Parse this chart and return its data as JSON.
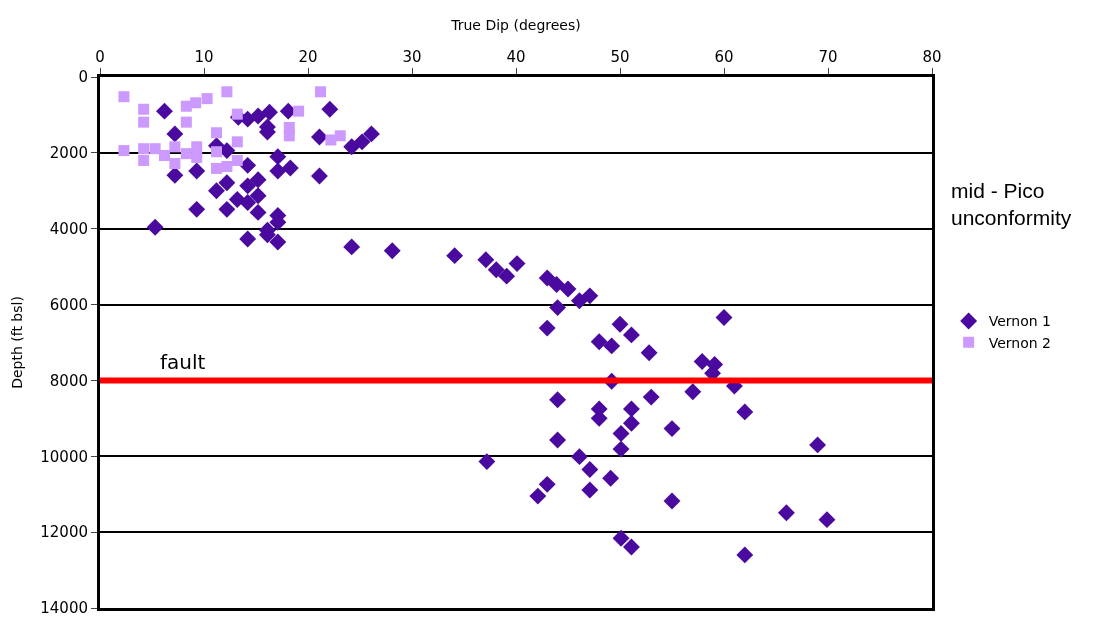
{
  "chart_data": {
    "type": "scatter",
    "xlabel": "True Dip (degrees)",
    "ylabel": "Depth (ft bsl)",
    "xlim": [
      0,
      80
    ],
    "xticks": [
      0,
      10,
      20,
      30,
      40,
      50,
      60,
      70,
      80
    ],
    "ylim": [
      14000,
      0
    ],
    "yticks": [
      0,
      2000,
      4000,
      6000,
      8000,
      10000,
      12000,
      14000
    ],
    "grid": "y",
    "legend": "right",
    "ref_lines": [
      {
        "axis": "y",
        "value": 8000,
        "label": "fault",
        "color": "#ff0000"
      }
    ],
    "annotations": [
      "mid - Pico\nunconformity"
    ],
    "series": [
      {
        "name": "Vernon 1",
        "color": "#4b0a9f",
        "marker": "diamond",
        "x": [
          6.2,
          7.2,
          7.2,
          9.3,
          5.3,
          9.3,
          13.3,
          14.2,
          15.2,
          16.3,
          16.1,
          16.1,
          18.1,
          22.1,
          21.1,
          24.2,
          25.2,
          26.1,
          12.2,
          11.2,
          14.2,
          17.1,
          17.1,
          18.3,
          21.1,
          12.2,
          14.2,
          15.2,
          11.2,
          13.2,
          14.2,
          15.2,
          12.2,
          15.2,
          17.1,
          17.1,
          16.1,
          16.1,
          14.2,
          17.1,
          24.2,
          28.1,
          34.1,
          37.1,
          38.1,
          39.1,
          40.1,
          43.0,
          43.9,
          45.0,
          46.1,
          47.1,
          44.0,
          43.0,
          50.0,
          51.1,
          48.0,
          49.2,
          52.8,
          49.2,
          44.0,
          60.0,
          57.9,
          59.1,
          58.9,
          61.0,
          57.0,
          53.0,
          62.0,
          48.0,
          51.1,
          48.0,
          51.1,
          55.0,
          50.1,
          44.0,
          50.1,
          69.0,
          37.2,
          46.1,
          47.1,
          49.1,
          43.0,
          42.1,
          47.1,
          55.0,
          66.0,
          69.9,
          50.1,
          51.1,
          62.0
        ],
        "values": [
          900,
          1500,
          2590,
          2480,
          3960,
          3490,
          1060,
          1110,
          1030,
          930,
          1320,
          1450,
          900,
          850,
          1580,
          1840,
          1710,
          1500,
          1940,
          1810,
          2330,
          2100,
          2480,
          2400,
          2610,
          2790,
          2870,
          2710,
          3000,
          3230,
          3310,
          3130,
          3490,
          3570,
          3650,
          3830,
          4040,
          4160,
          4270,
          4350,
          4480,
          4580,
          4710,
          4820,
          5080,
          5250,
          4920,
          5300,
          5470,
          5590,
          5900,
          5770,
          6080,
          6620,
          6520,
          6800,
          6980,
          7090,
          7270,
          8020,
          8510,
          6340,
          7500,
          7580,
          7810,
          8150,
          8300,
          8440,
          8830,
          8750,
          8750,
          9000,
          9130,
          9270,
          9400,
          9570,
          9810,
          9700,
          10140,
          10010,
          10350,
          10580,
          10740,
          11050,
          10890,
          11180,
          11490,
          11670,
          12160,
          12390,
          12600
        ]
      },
      {
        "name": "Vernon 2",
        "color": "#cc99ff",
        "marker": "square",
        "x": [
          2.3,
          4.2,
          4.2,
          8.3,
          8.3,
          9.2,
          10.3,
          12.2,
          21.2,
          13.2,
          19.1,
          18.2,
          18.2,
          11.2,
          13.2,
          22.2,
          23.1,
          2.3,
          4.2,
          4.2,
          5.3,
          6.2,
          7.2,
          7.2,
          8.3,
          9.3,
          9.3,
          11.2,
          11.2,
          12.2,
          13.2
        ],
        "values": [
          520,
          850,
          1190,
          770,
          1190,
          680,
          570,
          390,
          390,
          980,
          900,
          1330,
          1550,
          1470,
          1710,
          1660,
          1550,
          1940,
          1890,
          2200,
          1890,
          2070,
          1840,
          2280,
          2020,
          1840,
          2120,
          1970,
          2410,
          2360,
          2200
        ]
      }
    ]
  }
}
